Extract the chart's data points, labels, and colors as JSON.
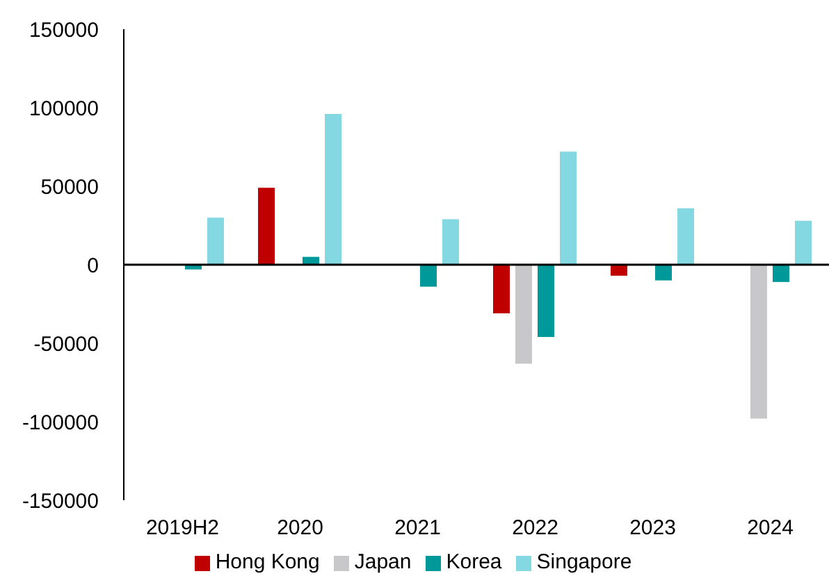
{
  "chart_data": {
    "type": "bar",
    "categories": [
      "2019H2",
      "2020",
      "2021",
      "2022",
      "2023",
      "2024"
    ],
    "series": [
      {
        "name": "Hong Kong",
        "color": "#c00000",
        "values": [
          null,
          49000,
          null,
          -31000,
          -7000,
          null
        ]
      },
      {
        "name": "Japan",
        "color": "#c8c8ca",
        "values": [
          null,
          null,
          null,
          -63000,
          null,
          -98000
        ]
      },
      {
        "name": "Korea",
        "color": "#009999",
        "values": [
          -3000,
          5000,
          -14000,
          -46000,
          -10000,
          -11000
        ]
      },
      {
        "name": "Singapore",
        "color": "#83d8e2",
        "values": [
          30000,
          96000,
          29000,
          72000,
          36000,
          28000
        ]
      }
    ],
    "ylim": [
      -150000,
      150000
    ],
    "yticks": [
      -150000,
      -100000,
      -50000,
      0,
      50000,
      100000,
      150000
    ],
    "legend": "bottom"
  }
}
